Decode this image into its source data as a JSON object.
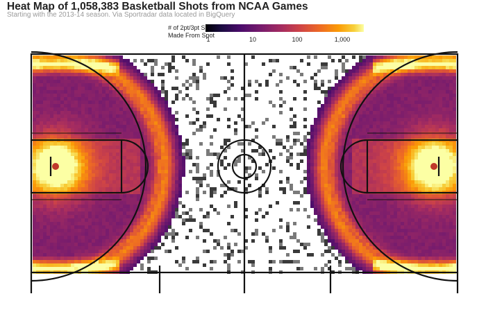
{
  "title": "Heat Map of 1,058,383 Basketball Shots from NCAA Games",
  "subtitle": "Starting with the 2013-14 season. Via Sportradar data located in BigQuery",
  "chart_data": {
    "type": "heatmap",
    "title": "Heat Map of 1,058,383 Basketball Shots from NCAA Games",
    "subtitle": "Starting with the 2013-14 season. Via Sportradar data located in BigQuery",
    "legend": {
      "label_lines": [
        "# of 2pt/3pt Shot Attempts",
        "Made From Spot"
      ],
      "scale": "log",
      "ticks": [
        "1",
        "10",
        "100",
        "1,000"
      ],
      "colormap": "magma",
      "range": [
        1,
        3000
      ]
    },
    "regions": [
      {
        "name": "rim",
        "density": "highest"
      },
      {
        "name": "three-point arc",
        "density": "high"
      },
      {
        "name": "paint",
        "density": "high"
      },
      {
        "name": "midrange",
        "density": "medium"
      },
      {
        "name": "beyond half court",
        "density": "sparse"
      }
    ],
    "colors": {
      "low": "#000004",
      "mid": "#b73779",
      "high": "#fb8861",
      "peak": "#fcffa4",
      "court_lines": "#111111"
    }
  }
}
